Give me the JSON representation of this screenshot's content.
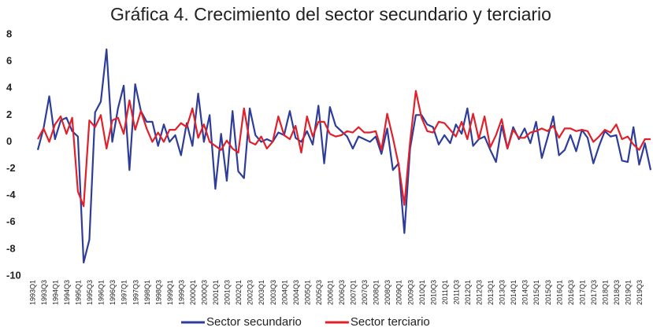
{
  "chart_data": {
    "type": "line",
    "title": "Gráfica 4. Crecimiento del sector secundario y terciario",
    "categories": [
      "1993Q1",
      null,
      "1993Q3",
      null,
      "1994Q1",
      null,
      "1994Q3",
      null,
      "1995Q1",
      null,
      "1995Q3",
      null,
      "1996Q1",
      null,
      "1996Q3",
      null,
      "1997Q1",
      null,
      "1997Q3",
      null,
      "1998Q1",
      null,
      "1998Q3",
      null,
      "1999Q1",
      null,
      "1999Q3",
      null,
      "2000Q1",
      null,
      "2000Q3",
      null,
      "2001Q1",
      null,
      "2001Q3",
      null,
      "2002Q1",
      null,
      "2002Q3",
      null,
      "2003Q1",
      null,
      "2003Q3",
      null,
      "2004Q1",
      null,
      "2004Q3",
      null,
      "2005Q1",
      null,
      "2005Q3",
      null,
      "2006Q1",
      null,
      "2006Q3",
      null,
      "2007Q1",
      null,
      "2007Q3",
      null,
      "2008Q1",
      null,
      "2008Q3",
      null,
      "2009Q1",
      null,
      "2009Q3",
      null,
      "2010Q1",
      null,
      "2010Q3",
      null,
      "2011Q1",
      null,
      "2011Q3",
      null,
      "2012Q1",
      null,
      "2012Q3",
      null,
      "2013Q1",
      null,
      "2013Q3",
      null,
      "2014Q1",
      null,
      "2014Q3",
      null,
      "2015Q1",
      null,
      "2015Q3",
      null,
      "2016Q1",
      null,
      "2016Q3",
      null,
      "2017Q1",
      null,
      "2017Q3",
      null,
      "2018Q1",
      null,
      "2018Q3",
      null,
      "2019Q1",
      null,
      "2019Q3",
      null
    ],
    "series": [
      {
        "name": "Sector secundario",
        "color": "#2e3d99",
        "values": [
          -0.6,
          1.0,
          3.4,
          0.2,
          1.6,
          1.8,
          0.8,
          0.4,
          -9.0,
          -7.3,
          2.2,
          3.0,
          6.9,
          0.0,
          2.5,
          4.2,
          -2.1,
          4.3,
          2.3,
          1.5,
          1.5,
          -0.3,
          1.3,
          0.0,
          0.5,
          -1.0,
          1.4,
          -0.3,
          3.6,
          0.0,
          2.0,
          -3.5,
          0.6,
          -2.9,
          2.3,
          -2.2,
          -2.7,
          2.5,
          0.5,
          0.0,
          0.2,
          0.0,
          0.7,
          0.5,
          2.3,
          0.3,
          0.0,
          0.8,
          -0.2,
          2.7,
          -1.6,
          2.6,
          1.2,
          0.8,
          0.4,
          -0.5,
          0.4,
          0.2,
          0.0,
          0.4,
          -0.9,
          1.0,
          -2.1,
          -1.6,
          -6.8,
          -0.5,
          2.0,
          2.0,
          1.3,
          1.1,
          -0.2,
          0.5,
          -0.1,
          1.3,
          0.6,
          2.5,
          -0.3,
          0.2,
          0.4,
          -0.6,
          -1.5,
          1.2,
          -0.5,
          1.1,
          0.2,
          1.0,
          -0.1,
          1.5,
          -1.2,
          0.3,
          1.9,
          -1.0,
          -0.6,
          0.5,
          -0.7,
          0.9,
          0.3,
          -1.6,
          -0.3,
          0.8,
          0.4,
          0.5,
          -1.4,
          -1.5,
          1.1,
          -1.7,
          -0.1,
          -2.1
        ]
      },
      {
        "name": "Sector terciario",
        "color": "#e0202a",
        "values": [
          0.2,
          1.0,
          0.0,
          1.3,
          1.9,
          0.6,
          1.8,
          -3.7,
          -4.8,
          1.6,
          1.1,
          2.0,
          -0.5,
          1.6,
          1.8,
          0.6,
          3.1,
          0.9,
          2.3,
          1.0,
          0.0,
          0.7,
          0.0,
          0.9,
          0.9,
          1.4,
          1.1,
          2.5,
          0.3,
          1.3,
          0.0,
          -0.3,
          -0.6,
          0.1,
          -0.5,
          -0.8,
          2.5,
          0.0,
          -0.2,
          0.4,
          -0.5,
          0.0,
          1.9,
          0.5,
          0.2,
          1.2,
          -0.8,
          1.9,
          0.4,
          1.5,
          1.5,
          0.6,
          0.4,
          0.5,
          0.8,
          0.7,
          1.1,
          0.7,
          0.7,
          0.8,
          -0.6,
          2.1,
          0.3,
          -1.7,
          -4.7,
          0.0,
          3.8,
          1.8,
          0.8,
          0.7,
          1.5,
          1.4,
          0.9,
          0.4,
          1.5,
          0.2,
          2.1,
          0.2,
          1.9,
          -0.4,
          0.5,
          1.7,
          -0.5,
          0.9,
          0.3,
          0.3,
          0.7,
          0.8,
          1.0,
          0.8,
          1.2,
          0.3,
          1.0,
          1.0,
          0.8,
          0.9,
          0.8,
          0.0,
          0.4,
          0.9,
          0.7,
          1.3,
          0.2,
          0.4,
          -0.2,
          -0.6,
          0.2,
          0.2
        ]
      }
    ],
    "ylim": [
      -10,
      8
    ],
    "yticks": [
      -10,
      -8,
      -6,
      -4,
      -2,
      0,
      2,
      4,
      6,
      8
    ],
    "legend": "bottom"
  }
}
